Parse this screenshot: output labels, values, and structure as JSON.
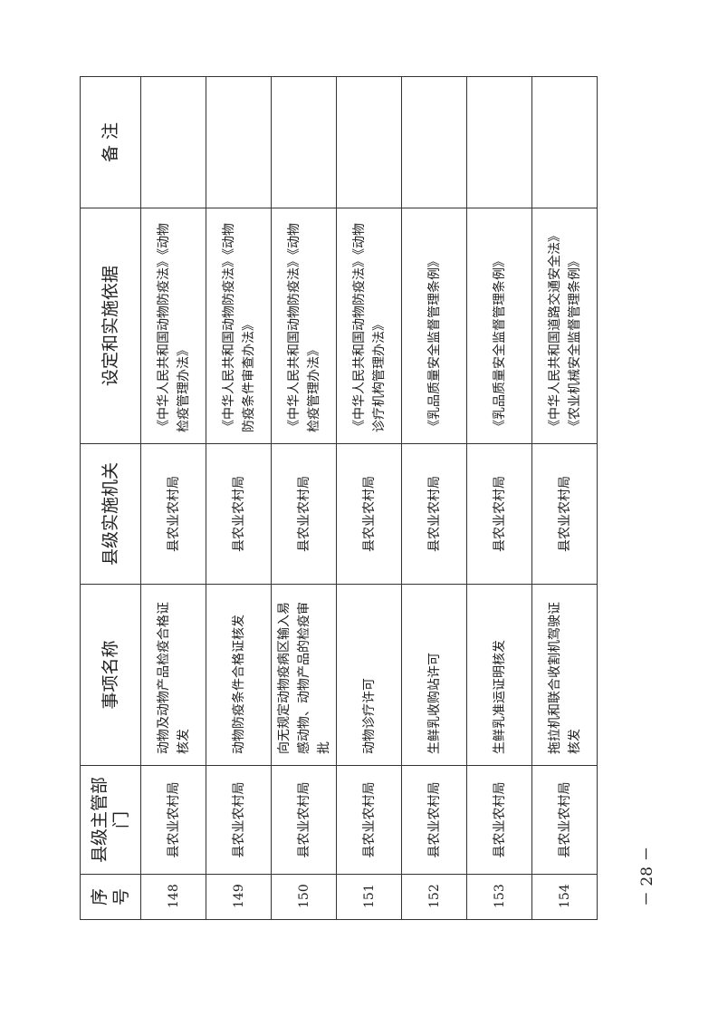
{
  "headers": {
    "no": "序号",
    "dept": "县级主管部门",
    "name": "事项名称",
    "agency": "县级实施机关",
    "basis": "设定和实施依据",
    "note": "备 注"
  },
  "rows": [
    {
      "no": "148",
      "dept": "县农业农村局",
      "name": "动物及动物产品检疫合格证核发",
      "agency": "县农业农村局",
      "basis": "《中华人民共和国动物防疫法》《动物检疫管理办法》",
      "note": ""
    },
    {
      "no": "149",
      "dept": "县农业农村局",
      "name": "动物防疫条件合格证核发",
      "agency": "县农业农村局",
      "basis": "《中华人民共和国动物防疫法》《动物防疫条件审查办法》",
      "note": ""
    },
    {
      "no": "150",
      "dept": "县农业农村局",
      "name": "向无规定动物疫病区输入易感动物、动物产品的检疫审批",
      "agency": "县农业农村局",
      "basis": "《中华人民共和国动物防疫法》《动物检疫管理办法》",
      "note": ""
    },
    {
      "no": "151",
      "dept": "县农业农村局",
      "name": "动物诊疗许可",
      "agency": "县农业农村局",
      "basis": "《中华人民共和国动物防疫法》《动物诊疗机构管理办法》",
      "note": ""
    },
    {
      "no": "152",
      "dept": "县农业农村局",
      "name": "生鲜乳收购站许可",
      "agency": "县农业农村局",
      "basis": "《乳品质量安全监督管理条例》",
      "note": ""
    },
    {
      "no": "153",
      "dept": "县农业农村局",
      "name": "生鲜乳准运证明核发",
      "agency": "县农业农村局",
      "basis": "《乳品质量安全监督管理条例》",
      "note": ""
    },
    {
      "no": "154",
      "dept": "县农业农村局",
      "name": "拖拉机和联合收割机驾驶证核发",
      "agency": "县农业农村局",
      "basis": "《中华人民共和国道路交通安全法》《农业机械安全监督管理条例》",
      "note": ""
    }
  ],
  "page_number": "－ 28 －"
}
